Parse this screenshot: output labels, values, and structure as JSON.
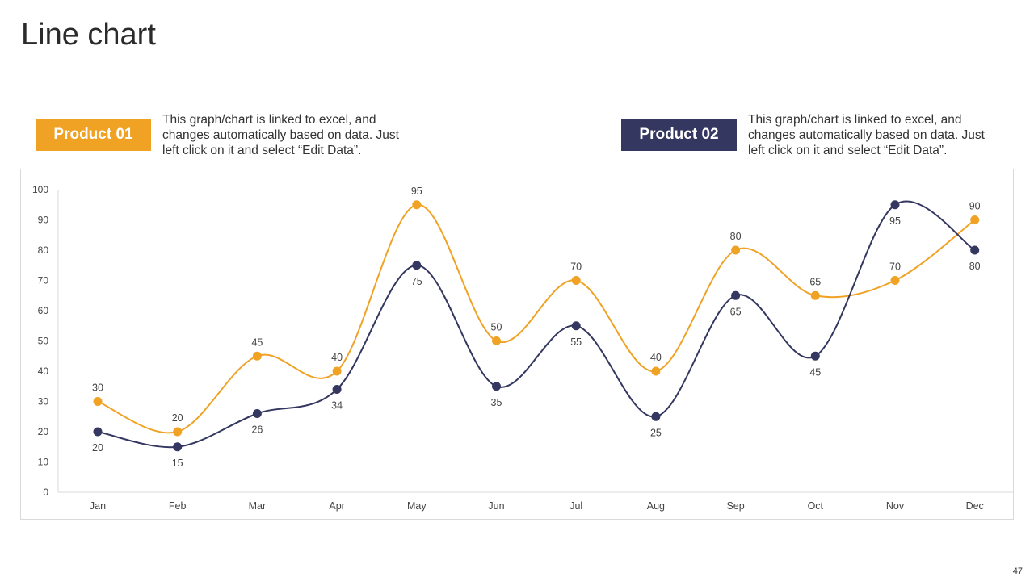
{
  "slide": {
    "title": "Line chart",
    "page_number": "47"
  },
  "legend": {
    "product1": {
      "label": "Product 01",
      "color": "#f0a224",
      "description": "This graph/chart is linked to excel, and changes automatically based on data. Just left click on it and select “Edit Data”."
    },
    "product2": {
      "label": "Product 02",
      "color": "#343760",
      "description": "This graph/chart is linked to excel, and changes automatically based on data. Just left click on it and select “Edit Data”."
    }
  },
  "chart_data": {
    "type": "line",
    "smooth": true,
    "categories": [
      "Jan",
      "Feb",
      "Mar",
      "Apr",
      "May",
      "Jun",
      "Jul",
      "Aug",
      "Sep",
      "Oct",
      "Nov",
      "Dec"
    ],
    "series": [
      {
        "name": "Product 01",
        "color": "#f0a224",
        "label_position": "above",
        "values": [
          30,
          20,
          45,
          40,
          95,
          50,
          70,
          40,
          80,
          65,
          70,
          90
        ]
      },
      {
        "name": "Product 02",
        "color": "#343760",
        "label_position": "below",
        "values": [
          20,
          15,
          26,
          34,
          75,
          35,
          55,
          25,
          65,
          45,
          95,
          80
        ]
      }
    ],
    "ylim": [
      0,
      100
    ],
    "yticks": [
      0,
      10,
      20,
      30,
      40,
      50,
      60,
      70,
      80,
      90,
      100
    ],
    "grid": false,
    "title": "",
    "xlabel": "",
    "ylabel": ""
  }
}
